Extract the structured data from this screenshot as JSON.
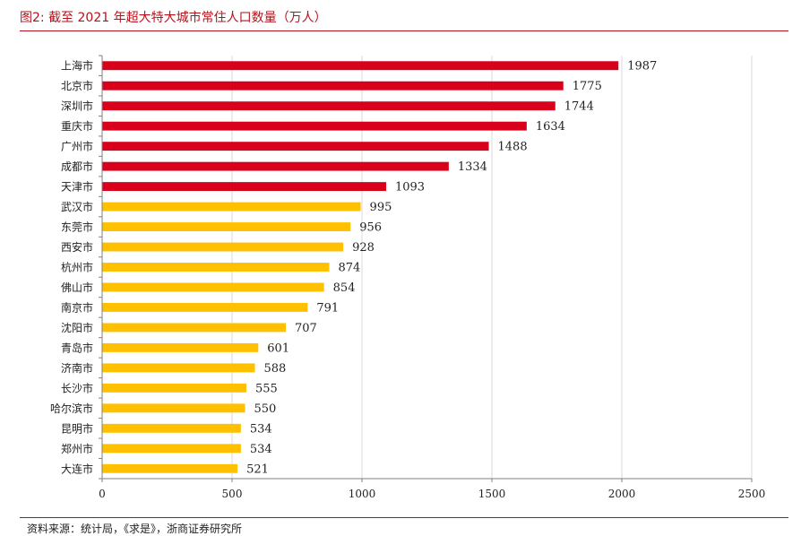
{
  "figure": {
    "title": "图2:   截至 2021 年超大特大城市常住人口数量（万人）",
    "source": "资料来源：统计局，《求是》，浙商证券研究所"
  },
  "colors": {
    "accent": "#b5121b",
    "highlight_bar": "#d9001b",
    "other_bar": "#ffc000",
    "grid": "#d9d9d9"
  },
  "chart_data": {
    "type": "bar",
    "orientation": "horizontal",
    "title": "截至 2021 年超大特大城市常住人口数量（万人）",
    "categories": [
      "上海市",
      "北京市",
      "深圳市",
      "重庆市",
      "广州市",
      "成都市",
      "天津市",
      "武汉市",
      "东莞市",
      "西安市",
      "杭州市",
      "佛山市",
      "南京市",
      "沈阳市",
      "青岛市",
      "济南市",
      "长沙市",
      "哈尔滨市",
      "昆明市",
      "郑州市",
      "大连市"
    ],
    "values": [
      1987,
      1775,
      1744,
      1634,
      1488,
      1334,
      1093,
      995,
      956,
      928,
      874,
      854,
      791,
      707,
      601,
      588,
      555,
      550,
      534,
      534,
      521
    ],
    "highlight_count": 7,
    "xlim": [
      0,
      2500
    ],
    "xticks": [
      0,
      500,
      1000,
      1500,
      2000,
      2500
    ],
    "grid": "vertical",
    "legend": "none",
    "xlabel": "",
    "ylabel": ""
  }
}
